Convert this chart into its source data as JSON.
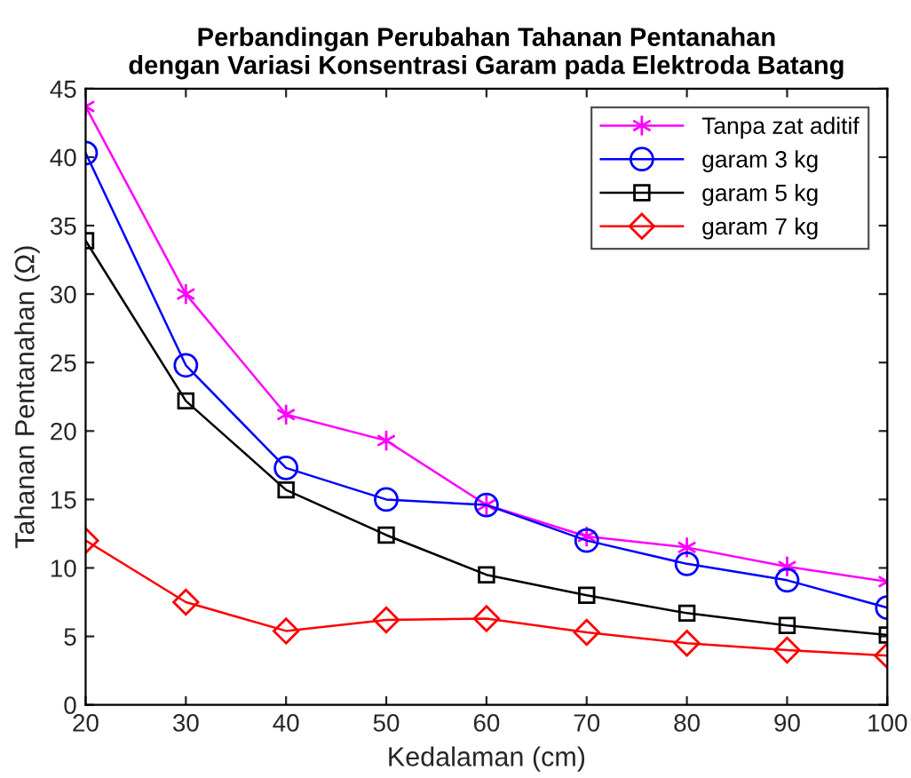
{
  "chart_data": {
    "type": "line",
    "title": "Perbandingan Perubahan Tahanan Pentanahan\ndengan Variasi Konsentrasi Garam pada Elektroda Batang",
    "xlabel": "Kedalaman (cm)",
    "ylabel": "Tahanan Pentanahan (Ω)",
    "x": [
      20,
      30,
      40,
      50,
      60,
      70,
      80,
      90,
      100
    ],
    "series": [
      {
        "name": "Tanpa zat aditif",
        "color": "#ff00ff",
        "marker": "cross",
        "values": [
          43.7,
          30.0,
          21.2,
          19.3,
          14.6,
          12.3,
          11.5,
          10.1,
          9.0
        ]
      },
      {
        "name": "garam 3 kg",
        "color": "#0000ff",
        "marker": "circle",
        "values": [
          40.3,
          24.8,
          17.3,
          15.0,
          14.6,
          12.0,
          10.3,
          9.1,
          7.1
        ]
      },
      {
        "name": "garam 5 kg",
        "color": "#000000",
        "marker": "square",
        "values": [
          33.9,
          22.2,
          15.7,
          12.4,
          9.5,
          8.0,
          6.7,
          5.8,
          5.1
        ]
      },
      {
        "name": "garam 7 kg",
        "color": "#ff0000",
        "marker": "diamond",
        "values": [
          12.0,
          7.5,
          5.4,
          6.2,
          6.3,
          5.3,
          4.5,
          4.0,
          3.6
        ]
      }
    ],
    "xlim": [
      20,
      100
    ],
    "xticks": [
      20,
      30,
      40,
      50,
      60,
      70,
      80,
      90,
      100
    ],
    "ylim": [
      0,
      45
    ],
    "yticks": [
      0,
      5,
      10,
      15,
      20,
      25,
      30,
      35,
      40,
      45
    ],
    "grid": false,
    "legend": "top right",
    "line_style": "solid"
  }
}
